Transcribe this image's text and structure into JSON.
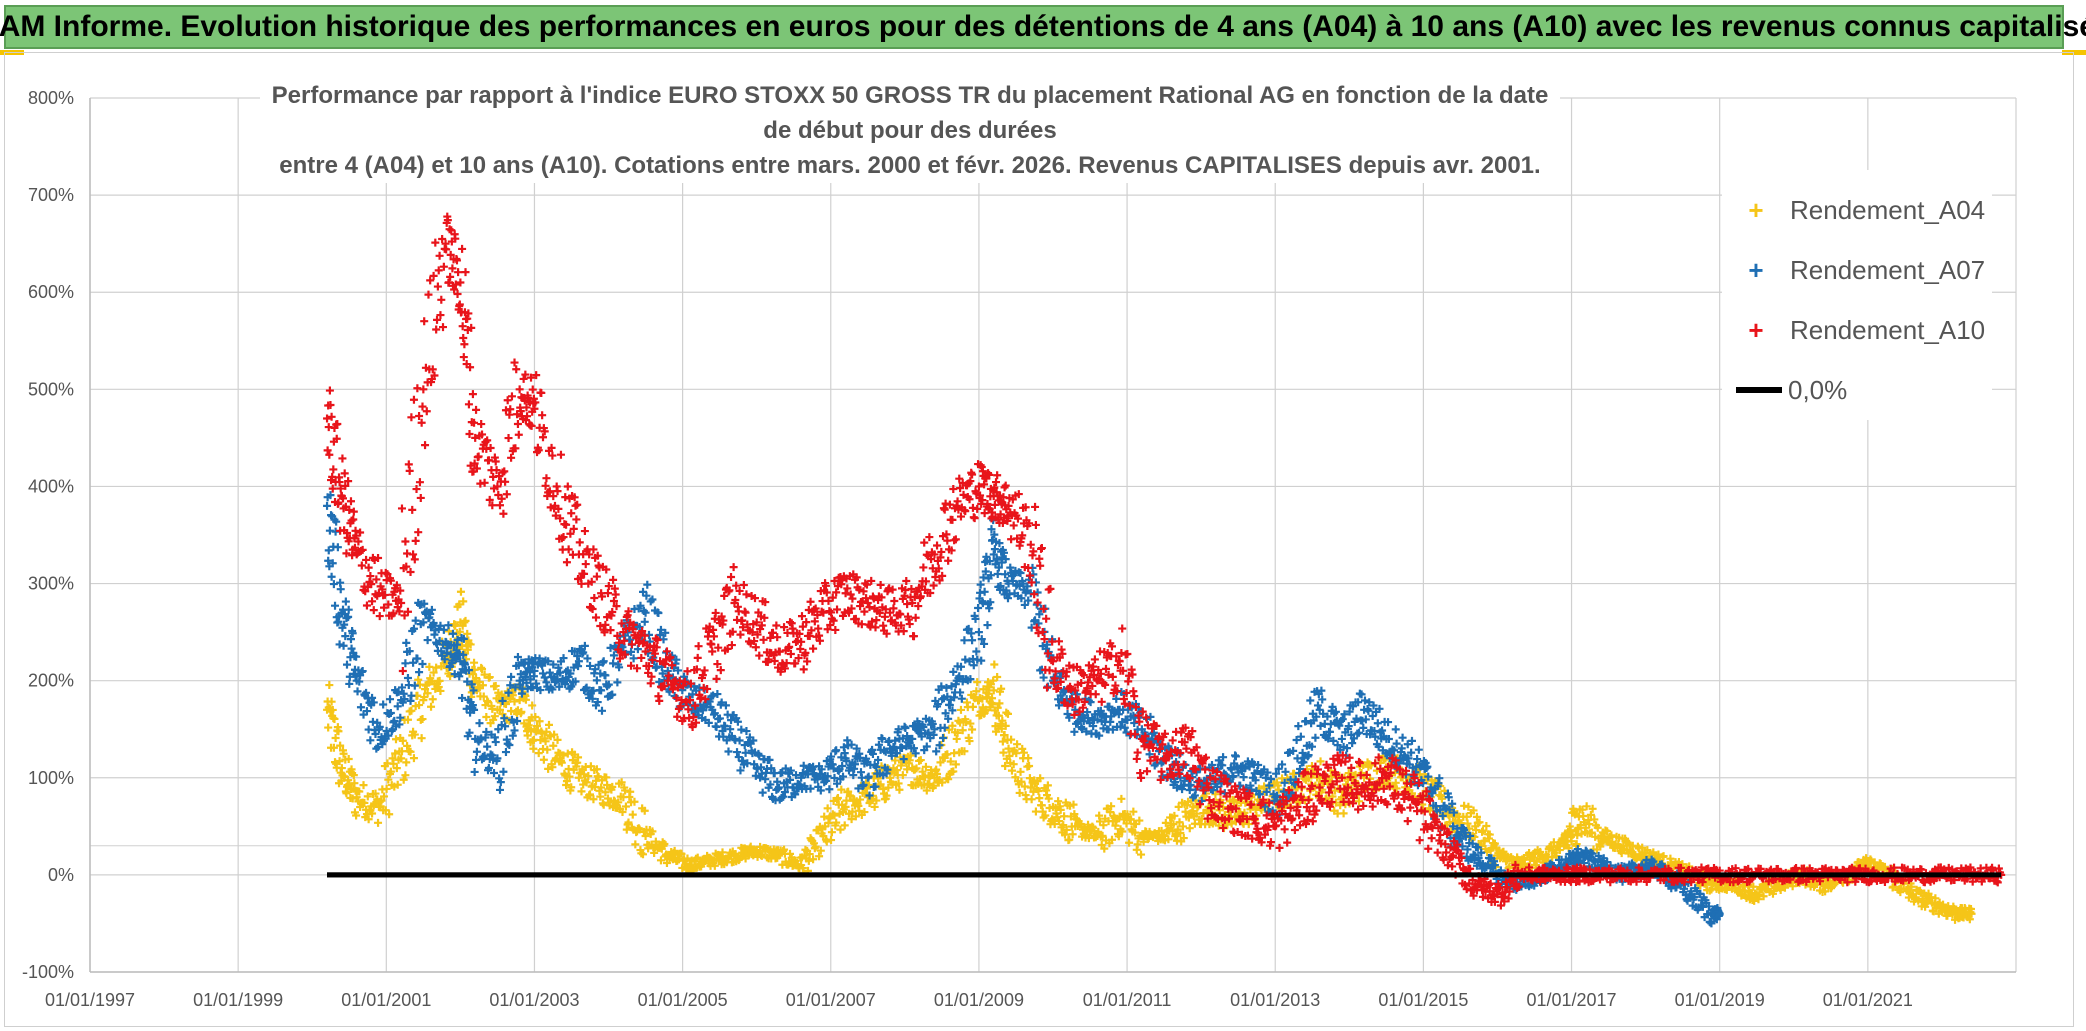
{
  "banner": {
    "title": "ADAM Informe. Evolution historique des performances en euros pour des détentions de 4 ans (A04) à 10 ans (A10) avec les revenus connus capitalisés"
  },
  "chart_data": {
    "type": "scatter",
    "title_line1": "Performance par rapport à l'indice EURO STOXX 50 GROSS TR  du placement Rational AG en fonction de la date de début pour des durées",
    "title_line2": "entre 4 (A04) et 10 ans (A10). Cotations entre mars. 2000 et févr. 2026. Revenus CAPITALISES depuis avr. 2001.",
    "xlabel": "",
    "ylabel": "",
    "xlim": [
      1997.0,
      2023.0
    ],
    "ylim": [
      -100,
      800
    ],
    "y_ticks": [
      -100,
      0,
      100,
      200,
      300,
      400,
      500,
      600,
      700,
      800
    ],
    "y_tick_labels": [
      "-100%",
      "0%",
      "100%",
      "200%",
      "300%",
      "400%",
      "500%",
      "600%",
      "700%",
      "800%"
    ],
    "x_ticks": [
      1997,
      1999,
      2001,
      2003,
      2005,
      2007,
      2009,
      2011,
      2013,
      2015,
      2017,
      2019,
      2021
    ],
    "x_tick_labels": [
      "01/01/1997",
      "01/01/1999",
      "01/01/2001",
      "01/01/2003",
      "01/01/2005",
      "01/01/2007",
      "01/01/2009",
      "01/01/2011",
      "01/01/2013",
      "01/01/2015",
      "01/01/2017",
      "01/01/2019",
      "01/01/2021"
    ],
    "grid": true,
    "series": [
      {
        "name": "Rendement_A04",
        "color": "#f5c518",
        "marker": "+",
        "x": [
          2000.2,
          2000.4,
          2000.6,
          2000.9,
          2001.2,
          2001.5,
          2001.8,
          2002.0,
          2002.2,
          2002.5,
          2002.8,
          2003.0,
          2003.3,
          2003.6,
          2003.9,
          2004.2,
          2004.5,
          2004.8,
          2005.1,
          2005.4,
          2005.7,
          2006.0,
          2006.3,
          2006.6,
          2006.9,
          2007.2,
          2007.5,
          2007.8,
          2008.1,
          2008.4,
          2008.7,
          2009.0,
          2009.2,
          2009.4,
          2009.7,
          2010.0,
          2010.3,
          2010.6,
          2010.9,
          2011.2,
          2011.5,
          2011.8,
          2012.1,
          2012.4,
          2012.7,
          2013.0,
          2013.3,
          2013.6,
          2013.9,
          2014.2,
          2014.5,
          2014.8,
          2015.1,
          2015.4,
          2015.7,
          2016.0,
          2016.3,
          2016.6,
          2016.9,
          2017.1,
          2017.4,
          2017.7,
          2018.0,
          2018.3,
          2018.6,
          2018.9,
          2019.2,
          2019.5,
          2019.8,
          2020.1,
          2020.4,
          2020.7,
          2021.0,
          2021.3,
          2021.6,
          2021.9,
          2022.2,
          2022.4
        ],
        "values": [
          170,
          110,
          80,
          70,
          120,
          180,
          220,
          260,
          200,
          170,
          180,
          150,
          120,
          100,
          90,
          80,
          40,
          20,
          10,
          15,
          20,
          25,
          20,
          10,
          40,
          70,
          80,
          100,
          110,
          100,
          140,
          180,
          190,
          130,
          90,
          70,
          50,
          40,
          60,
          40,
          40,
          60,
          70,
          60,
          70,
          80,
          90,
          100,
          80,
          100,
          110,
          100,
          80,
          60,
          50,
          20,
          10,
          20,
          30,
          60,
          40,
          30,
          20,
          10,
          0,
          -10,
          -10,
          -20,
          -10,
          0,
          -10,
          0,
          10,
          0,
          -20,
          -30,
          -40,
          -40
        ]
      },
      {
        "name": "Rendement_A07",
        "color": "#1f6fb4",
        "marker": "+",
        "x": [
          2000.2,
          2000.4,
          2000.6,
          2000.9,
          2001.2,
          2001.5,
          2001.8,
          2002.0,
          2002.2,
          2002.5,
          2002.8,
          2003.0,
          2003.3,
          2003.6,
          2003.9,
          2004.2,
          2004.5,
          2004.8,
          2005.1,
          2005.4,
          2005.7,
          2006.0,
          2006.3,
          2006.6,
          2006.9,
          2007.2,
          2007.5,
          2007.8,
          2008.1,
          2008.4,
          2008.7,
          2009.0,
          2009.2,
          2009.4,
          2009.7,
          2010.0,
          2010.3,
          2010.6,
          2010.9,
          2011.2,
          2011.5,
          2011.8,
          2012.1,
          2012.4,
          2012.7,
          2013.0,
          2013.3,
          2013.6,
          2013.9,
          2014.2,
          2014.5,
          2014.8,
          2015.1,
          2015.4,
          2015.7,
          2016.0,
          2016.3,
          2016.6,
          2016.9,
          2017.1,
          2017.4,
          2017.7,
          2018.0,
          2018.3,
          2018.6,
          2018.9,
          2019.0
        ],
        "values": [
          380,
          270,
          200,
          150,
          180,
          260,
          240,
          220,
          140,
          120,
          200,
          210,
          200,
          220,
          190,
          230,
          270,
          210,
          180,
          170,
          140,
          110,
          90,
          100,
          100,
          120,
          100,
          130,
          140,
          150,
          200,
          250,
          330,
          300,
          290,
          200,
          170,
          160,
          170,
          150,
          120,
          100,
          90,
          110,
          100,
          80,
          120,
          170,
          140,
          170,
          140,
          120,
          90,
          50,
          20,
          0,
          -10,
          0,
          10,
          20,
          10,
          0,
          10,
          0,
          -20,
          -40,
          -40
        ]
      },
      {
        "name": "Rendement_A10",
        "color": "#e8141a",
        "marker": "+",
        "x": [
          2000.2,
          2000.4,
          2000.6,
          2000.9,
          2001.2,
          2001.5,
          2001.8,
          2002.0,
          2002.2,
          2002.5,
          2002.8,
          2003.0,
          2003.3,
          2003.6,
          2003.9,
          2004.2,
          2004.5,
          2004.8,
          2005.1,
          2005.4,
          2005.7,
          2006.0,
          2006.3,
          2006.6,
          2006.9,
          2007.2,
          2007.5,
          2007.8,
          2008.1,
          2008.4,
          2008.7,
          2009.0,
          2009.2,
          2009.4,
          2009.7,
          2010.0,
          2010.3,
          2010.6,
          2010.9,
          2011.2,
          2011.5,
          2011.8,
          2012.1,
          2012.4,
          2012.7,
          2013.0,
          2013.3,
          2013.6,
          2013.9,
          2014.2,
          2014.5,
          2014.8,
          2015.1,
          2015.4,
          2015.7,
          2016.0,
          2016.3,
          2016.6,
          2016.9,
          2017.2,
          2017.6,
          2018.0,
          2018.4,
          2018.8,
          2019.2,
          2019.6,
          2020.0,
          2020.4,
          2020.8,
          2021.2,
          2021.6,
          2022.0,
          2022.4,
          2022.8
        ],
        "values": [
          470,
          390,
          330,
          290,
          280,
          500,
          650,
          610,
          450,
          400,
          500,
          480,
          400,
          330,
          290,
          250,
          230,
          200,
          180,
          230,
          280,
          260,
          230,
          240,
          270,
          290,
          280,
          270,
          280,
          330,
          380,
          400,
          390,
          380,
          340,
          220,
          190,
          200,
          220,
          140,
          120,
          130,
          90,
          70,
          60,
          50,
          70,
          90,
          100,
          90,
          100,
          80,
          50,
          20,
          -10,
          -20,
          0,
          0,
          0,
          0,
          0,
          0,
          0,
          0,
          0,
          0,
          0,
          0,
          0,
          0,
          0,
          0,
          0,
          0
        ]
      },
      {
        "name": "0,0%",
        "color": "#000000",
        "marker": "line",
        "x": [
          2000.2,
          2022.8
        ],
        "values": [
          0,
          0
        ]
      }
    ]
  }
}
